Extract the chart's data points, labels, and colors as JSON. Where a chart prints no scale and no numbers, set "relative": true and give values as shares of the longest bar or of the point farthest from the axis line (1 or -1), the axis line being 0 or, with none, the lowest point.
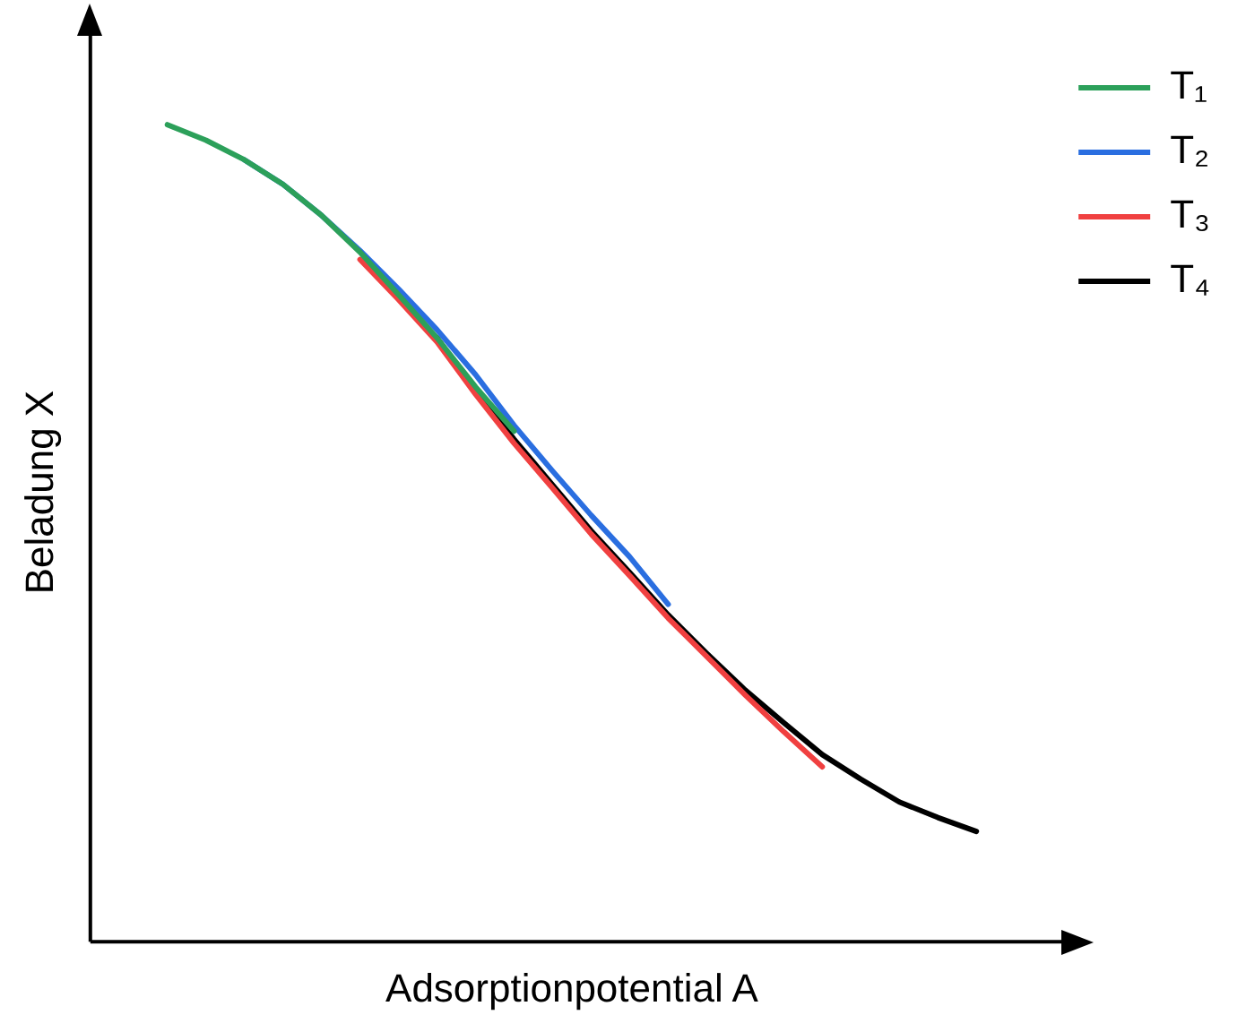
{
  "chart_data": {
    "type": "line",
    "relative": true,
    "xlabel": "Adsorptionpotential A",
    "ylabel": "Beladung X",
    "tick_labels": false,
    "grid": false,
    "legend": "top right",
    "marker": "none",
    "line_style": "solid",
    "categories": [
      null,
      null,
      null,
      null,
      null,
      null,
      null,
      null,
      null,
      null,
      null,
      null,
      null,
      null,
      null,
      null,
      null,
      null,
      null,
      null,
      null,
      null,
      null,
      null,
      null,
      null
    ],
    "series": [
      {
        "name": "T₁",
        "color": "#2ca05a",
        "values": [
          null,
          null,
          1,
          0.981,
          0.957,
          0.927,
          0.889,
          0.844,
          0.792,
          0.739,
          0.679,
          0.625,
          null,
          null,
          null,
          null,
          null,
          null,
          null,
          null,
          null,
          null,
          null,
          null,
          null,
          null
        ]
      },
      {
        "name": "T₂",
        "color": "#2a6ee0",
        "values": [
          null,
          null,
          null,
          null,
          0.957,
          0.927,
          0.889,
          0.846,
          0.799,
          0.749,
          0.694,
          0.632,
          0.576,
          0.522,
          0.471,
          0.413,
          null,
          null,
          null,
          null,
          null,
          null,
          null,
          null,
          null,
          null
        ]
      },
      {
        "name": "T₃",
        "color": "#f04040",
        "values": [
          null,
          null,
          null,
          null,
          null,
          null,
          null,
          0.835,
          0.786,
          0.734,
          0.67,
          0.61,
          0.555,
          0.499,
          0.448,
          0.396,
          0.349,
          0.302,
          0.257,
          0.214,
          null,
          null,
          null,
          null,
          null,
          null
        ]
      },
      {
        "name": "T₄",
        "color": "#000000",
        "values": [
          null,
          null,
          null,
          null,
          null,
          null,
          null,
          null,
          null,
          0.739,
          0.675,
          0.615,
          0.559,
          0.503,
          0.452,
          0.4,
          0.353,
          0.308,
          0.268,
          0.229,
          0.199,
          0.171,
          0.152,
          0.135,
          null,
          null
        ]
      }
    ]
  }
}
